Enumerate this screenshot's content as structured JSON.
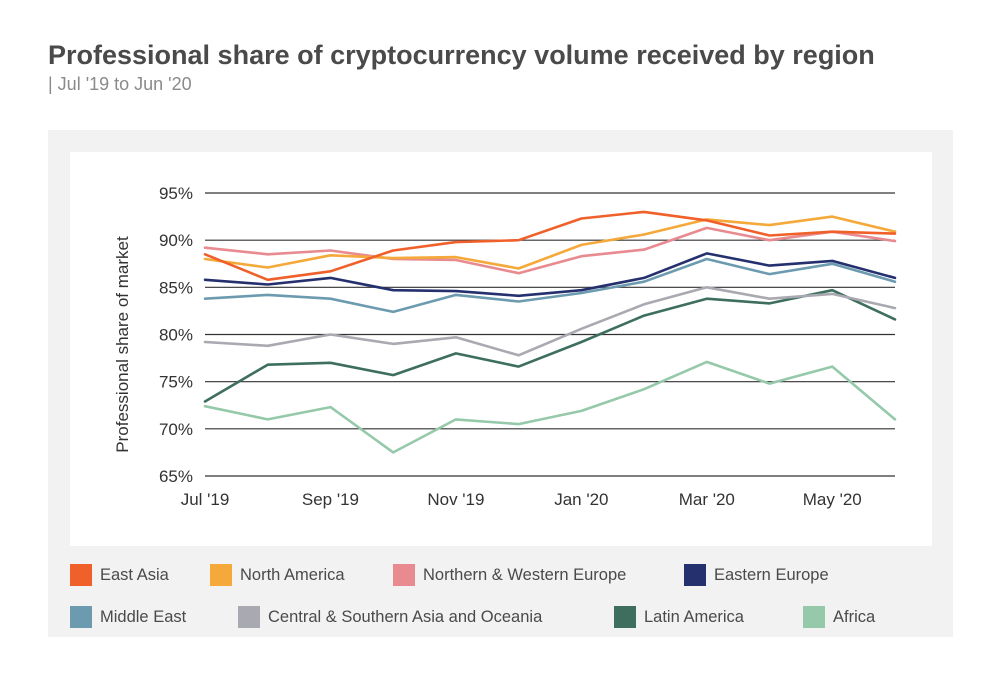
{
  "title": "Professional share of cryptocurrency volume received by region",
  "subtitle": "| Jul '19 to Jun '20",
  "chart_data": {
    "type": "line",
    "title": "Professional share of cryptocurrency volume received by region",
    "subtitle": "| Jul '19 to Jun '20",
    "xlabel": "",
    "ylabel": "Professional share of market",
    "x": [
      "Jul '19",
      "Aug '19",
      "Sep '19",
      "Oct '19",
      "Nov '19",
      "Dec '19",
      "Jan '20",
      "Feb '20",
      "Mar '20",
      "Apr '20",
      "May '20",
      "Jun '20"
    ],
    "x_tick_labels": [
      "Jul '19",
      "Sep '19",
      "Nov '19",
      "Jan '20",
      "Mar '20",
      "May '20"
    ],
    "x_tick_indices": [
      0,
      2,
      4,
      6,
      8,
      10
    ],
    "ylim": [
      65,
      95
    ],
    "y_ticks": [
      65,
      70,
      75,
      80,
      85,
      90,
      95
    ],
    "y_tick_labels": [
      "65%",
      "70%",
      "75%",
      "80%",
      "85%",
      "90%",
      "95%"
    ],
    "grid": "horizontal",
    "legend_position": "bottom",
    "series": [
      {
        "name": "East Asia",
        "color": "#f0602a",
        "values": [
          88.5,
          85.8,
          86.7,
          88.9,
          89.8,
          90.0,
          92.3,
          93.0,
          92.1,
          90.5,
          90.9,
          90.7
        ]
      },
      {
        "name": "North America",
        "color": "#f5a93a",
        "values": [
          88.0,
          87.1,
          88.4,
          88.1,
          88.2,
          87.0,
          89.5,
          90.6,
          92.2,
          91.6,
          92.5,
          90.9
        ]
      },
      {
        "name": "Northern & Western Europe",
        "color": "#e88a8f",
        "values": [
          89.2,
          88.5,
          88.9,
          88.0,
          87.9,
          86.5,
          88.3,
          89.0,
          91.3,
          90.0,
          90.9,
          89.9
        ]
      },
      {
        "name": "Eastern Europe",
        "color": "#25306e",
        "values": [
          85.8,
          85.3,
          86.0,
          84.7,
          84.6,
          84.1,
          84.7,
          86.0,
          88.6,
          87.3,
          87.8,
          86.0
        ]
      },
      {
        "name": "Middle East",
        "color": "#6c9bb0",
        "values": [
          83.8,
          84.2,
          83.8,
          82.4,
          84.2,
          83.5,
          84.4,
          85.6,
          88.0,
          86.4,
          87.5,
          85.6
        ]
      },
      {
        "name": "Central & Southern Asia and Oceania",
        "color": "#a9a9b1",
        "values": [
          79.2,
          78.8,
          80.0,
          79.0,
          79.7,
          77.8,
          80.6,
          83.2,
          85.0,
          83.8,
          84.3,
          82.8
        ]
      },
      {
        "name": "Latin America",
        "color": "#3e6e5e",
        "values": [
          72.9,
          76.8,
          77.0,
          75.7,
          78.0,
          76.6,
          79.2,
          82.0,
          83.8,
          83.3,
          84.7,
          81.6
        ]
      },
      {
        "name": "Africa",
        "color": "#95c9aa",
        "values": [
          72.4,
          71.0,
          72.3,
          67.5,
          71.0,
          70.5,
          71.9,
          74.2,
          77.1,
          74.8,
          76.6,
          71.0
        ]
      }
    ]
  }
}
